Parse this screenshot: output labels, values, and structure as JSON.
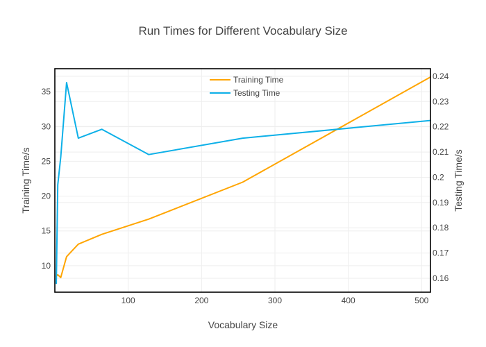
{
  "chart_data": {
    "type": "line",
    "title": "Run Times for Different Vocabulary Size",
    "xlabel": "Vocabulary Size",
    "ylabel": "Training Time/s",
    "y2label": "Testing Time/s",
    "xlim": [
      0,
      512
    ],
    "ylim": [
      6.2,
      38.3
    ],
    "y2lim": [
      0.1545,
      0.243
    ],
    "xticks": [
      100,
      200,
      300,
      400,
      500
    ],
    "yticks": [
      10,
      15,
      20,
      25,
      30,
      35
    ],
    "y2ticks": [
      0.16,
      0.17,
      0.18,
      0.19,
      0.2,
      0.21,
      0.22,
      0.23,
      0.24
    ],
    "grid": true,
    "legend": "top-center",
    "series": [
      {
        "name": "Training Time",
        "axis": "y",
        "color": "#FFA500",
        "x": [
          2,
          4,
          8,
          16,
          32,
          64,
          128,
          256,
          512
        ],
        "y": [
          8.5,
          8.7,
          8.3,
          11.3,
          13.1,
          14.5,
          16.7,
          22.0,
          37.1
        ]
      },
      {
        "name": "Testing Time",
        "axis": "y2",
        "color": "#0DB0E8",
        "x": [
          2,
          4,
          8,
          16,
          32,
          64,
          128,
          256,
          512
        ],
        "y": [
          0.158,
          0.197,
          0.208,
          0.2375,
          0.2155,
          0.219,
          0.209,
          0.2155,
          0.2225
        ]
      }
    ]
  }
}
